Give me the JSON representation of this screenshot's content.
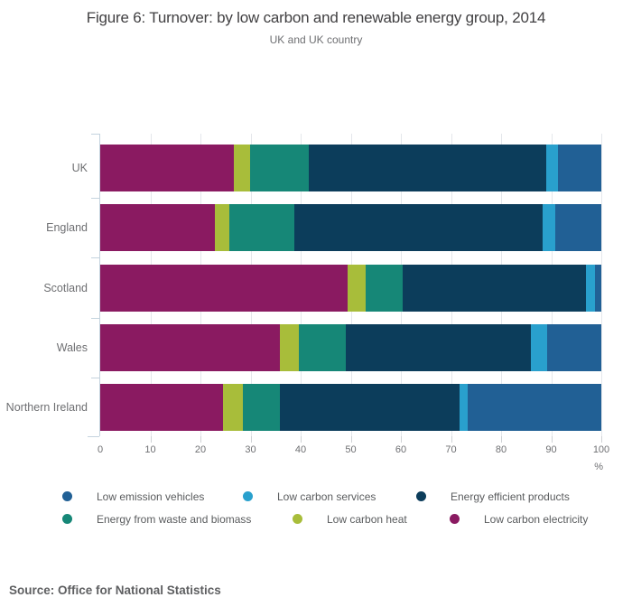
{
  "header": {
    "title": "Figure 6: Turnover: by low carbon and renewable energy group, 2014",
    "subtitle": "UK and UK country"
  },
  "chart_data": {
    "type": "bar",
    "orientation": "horizontal",
    "stacked": true,
    "title": "Figure 6: Turnover: by low carbon and renewable energy group, 2014",
    "subtitle": "UK and UK country",
    "categories": [
      "UK",
      "England",
      "Scotland",
      "Wales",
      "Northern Ireland"
    ],
    "series": [
      {
        "name": "Low carbon electricity",
        "color": "#8a1a61",
        "values": [
          26.7,
          22.8,
          49.3,
          35.8,
          24.5
        ]
      },
      {
        "name": "Low carbon heat",
        "color": "#a8bd3a",
        "values": [
          3.2,
          2.9,
          3.7,
          3.9,
          4.0
        ]
      },
      {
        "name": "Energy from waste and biomass",
        "color": "#168777",
        "values": [
          11.8,
          13.0,
          7.3,
          9.3,
          7.3
        ]
      },
      {
        "name": "Energy efficient products",
        "color": "#0c3d5b",
        "values": [
          47.3,
          49.6,
          36.7,
          37.0,
          36.0
        ]
      },
      {
        "name": "Low carbon services",
        "color": "#29a0cd",
        "values": [
          2.3,
          2.5,
          1.8,
          3.2,
          1.6
        ]
      },
      {
        "name": "Low emission vehicles",
        "color": "#216095",
        "values": [
          8.7,
          9.2,
          1.2,
          10.8,
          26.6
        ]
      }
    ],
    "x_axis": {
      "range": [
        0,
        100
      ],
      "tick_labels": [
        "0",
        "10",
        "20",
        "30",
        "40",
        "50",
        "60",
        "70",
        "80",
        "90",
        "100"
      ],
      "unit_label": "%",
      "grid": true
    },
    "legend": {
      "position": "bottom",
      "rows": [
        [
          "Low emission vehicles",
          "Low carbon services",
          "Energy efficient products"
        ],
        [
          "Energy from waste and biomass",
          "Low carbon heat",
          "Low carbon electricity"
        ]
      ]
    }
  },
  "source": {
    "label": "Source: Office for National Statistics"
  }
}
